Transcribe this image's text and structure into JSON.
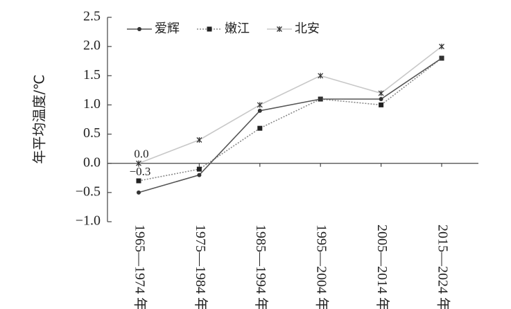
{
  "chart_data": {
    "type": "line",
    "ylabel": "年平均温度/℃",
    "ylim": [
      -1.0,
      2.5
    ],
    "yticks": [
      -1.0,
      -0.5,
      0.0,
      0.5,
      1.0,
      1.5,
      2.0,
      2.5
    ],
    "ytick_labels": [
      "−1.0",
      "−0.5",
      "0.0",
      "0.5",
      "1.0",
      "1.5",
      "2.0",
      "2.5"
    ],
    "categories": [
      "1965—1974 年",
      "1975—1984 年",
      "1985—1994 年",
      "1995—2004 年",
      "2005—2014 年",
      "2015—2024 年"
    ],
    "grid": false,
    "legend_position": "top-left",
    "series": [
      {
        "name": "爱辉",
        "values": [
          -0.5,
          -0.2,
          0.9,
          1.1,
          1.1,
          1.8
        ],
        "color": "#555555",
        "marker": "circle",
        "dash": ""
      },
      {
        "name": "嫩江",
        "values": [
          -0.3,
          -0.1,
          0.6,
          1.1,
          1.0,
          1.8
        ],
        "color": "#888888",
        "marker": "square",
        "dash": "2,2"
      },
      {
        "name": "北安",
        "values": [
          0.0,
          0.4,
          1.0,
          1.5,
          1.2,
          2.0
        ],
        "color": "#c8c8c8",
        "marker": "star",
        "dash": ""
      }
    ],
    "annotations": [
      {
        "text": "0.0",
        "x_index": 0,
        "y": 0.0,
        "position": "above"
      },
      {
        "text": "−0.3",
        "x_index": 0,
        "y": -0.3,
        "position": "above"
      }
    ]
  }
}
